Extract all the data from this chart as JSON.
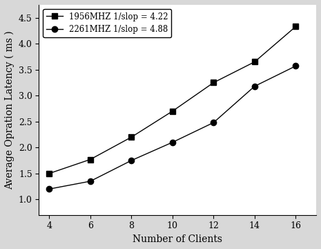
{
  "series": [
    {
      "label": "1956MHZ 1/slop = 4.22",
      "x": [
        4,
        6,
        8,
        10,
        12,
        14,
        16
      ],
      "y": [
        1.5,
        1.77,
        2.2,
        2.7,
        3.25,
        3.65,
        4.33
      ],
      "marker": "s",
      "color": "#000000",
      "linestyle": "-"
    },
    {
      "label": "2261MHZ 1/slop = 4.88",
      "x": [
        4,
        6,
        8,
        10,
        12,
        14,
        16
      ],
      "y": [
        1.2,
        1.35,
        1.75,
        2.1,
        2.48,
        3.18,
        3.57
      ],
      "marker": "o",
      "color": "#000000",
      "linestyle": "-"
    }
  ],
  "xlabel": "Number of Clients",
  "ylabel": "Average Opration Latency ( ms )",
  "xlim": [
    3.5,
    17
  ],
  "ylim": [
    0.7,
    4.75
  ],
  "xticks": [
    4,
    6,
    8,
    10,
    12,
    14,
    16
  ],
  "yticks": [
    1.0,
    1.5,
    2.0,
    2.5,
    3.0,
    3.5,
    4.0,
    4.5
  ],
  "legend_loc": "upper left",
  "legend_fontsize": 8.5,
  "axis_fontsize": 10,
  "tick_fontsize": 9,
  "plot_bg_color": "#ffffff",
  "figure_bg_color": "#d8d8d8",
  "font_family": "DejaVu Serif",
  "markersize": 6,
  "linewidth": 1.0
}
